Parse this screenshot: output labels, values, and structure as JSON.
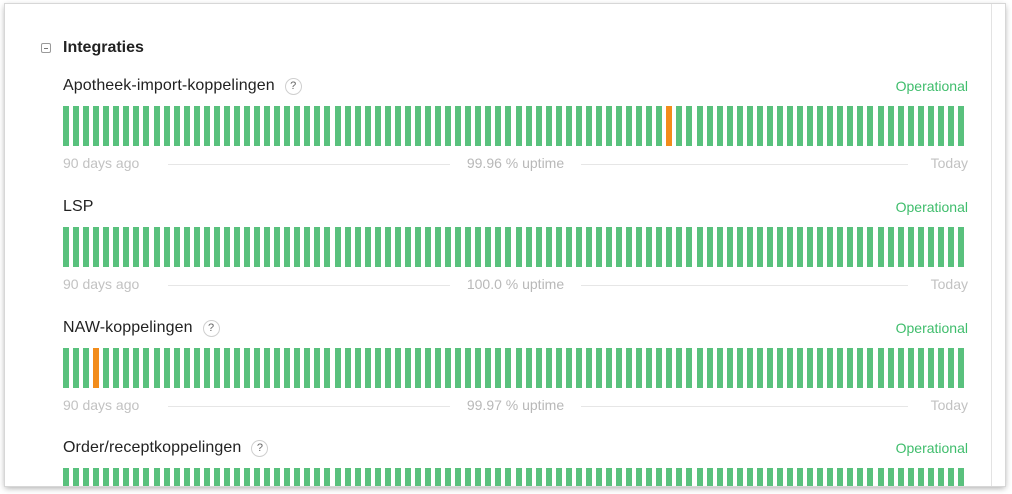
{
  "group": {
    "title": "Integraties"
  },
  "components": [
    {
      "name": "Apotheek-import-koppelingen",
      "has_help": true,
      "status": "Operational",
      "start_label": "90 days ago",
      "uptime_label": "99.96 % uptime",
      "end_label": "Today",
      "degraded_days": [
        60
      ]
    },
    {
      "name": "LSP",
      "has_help": false,
      "status": "Operational",
      "start_label": "90 days ago",
      "uptime_label": "100.0 % uptime",
      "end_label": "Today",
      "degraded_days": []
    },
    {
      "name": "NAW-koppelingen",
      "has_help": true,
      "status": "Operational",
      "start_label": "90 days ago",
      "uptime_label": "99.97 % uptime",
      "end_label": "Today",
      "degraded_days": [
        3
      ]
    },
    {
      "name": "Order/receptkoppelingen",
      "has_help": true,
      "status": "Operational",
      "start_label": "",
      "uptime_label": "",
      "end_label": "",
      "degraded_days": []
    }
  ],
  "days_shown": 90,
  "help_glyph": "?",
  "colors": {
    "operational": "#59c17d",
    "degraded": "#f28c1b",
    "status_text": "#3fbd6c"
  }
}
